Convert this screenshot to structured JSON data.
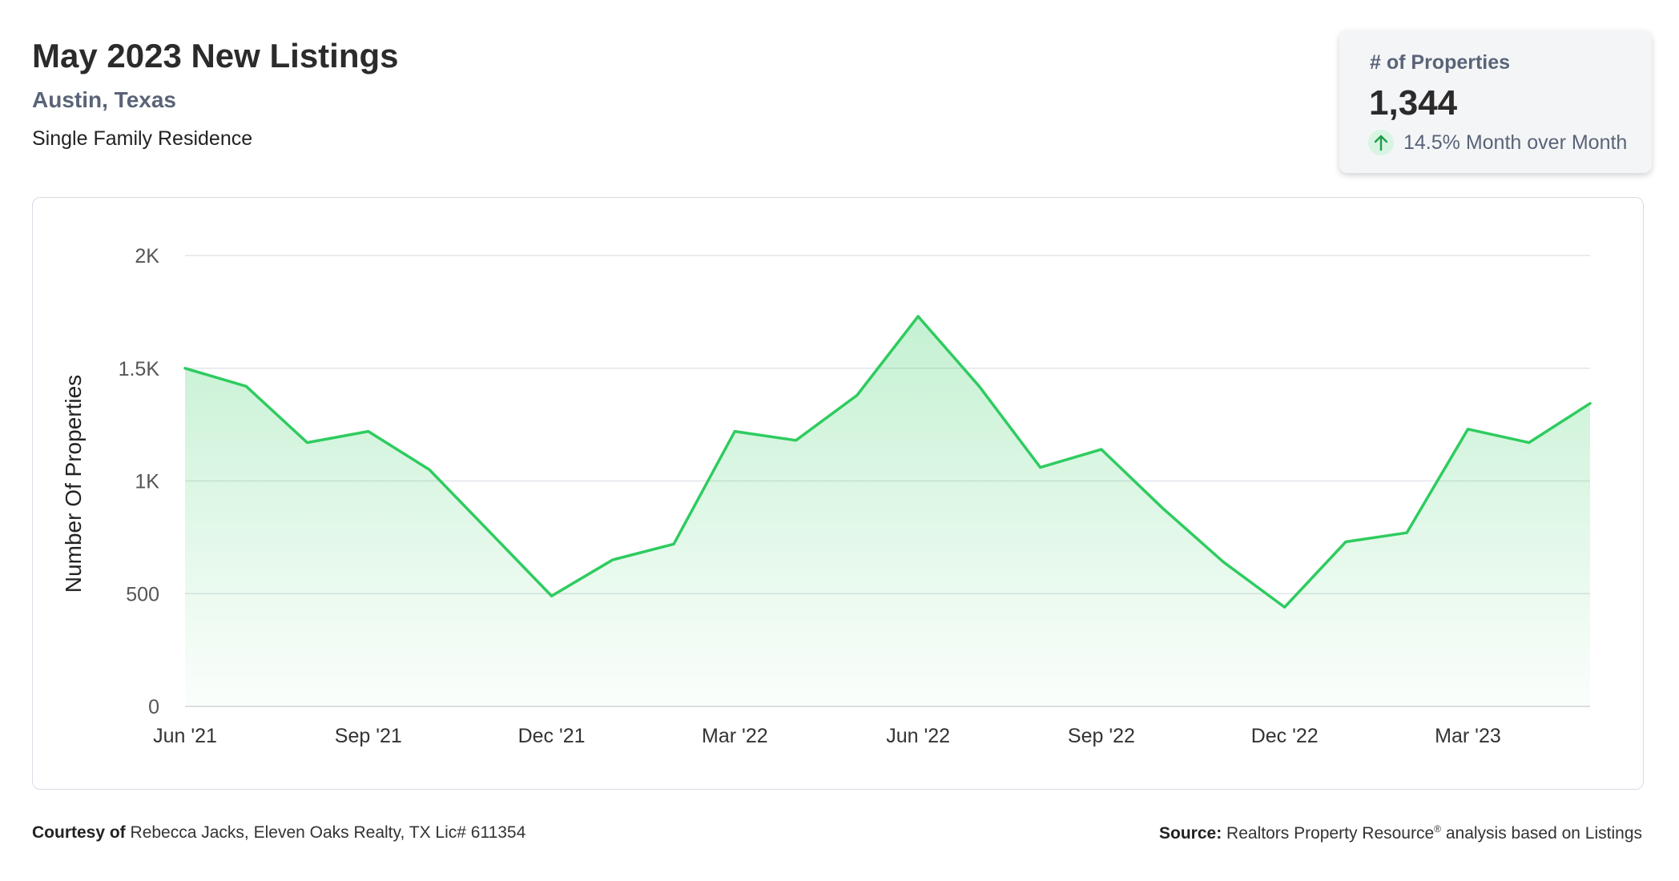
{
  "header": {
    "title": "May 2023 New Listings",
    "location": "Austin, Texas",
    "property_type": "Single Family Residence"
  },
  "stat_card": {
    "label": "# of Properties",
    "value": "1,344",
    "change": "14.5% Month over Month",
    "change_direction": "up",
    "change_color": "#2bb55a"
  },
  "chart_data": {
    "type": "area",
    "title": "",
    "xlabel": "",
    "ylabel": "Number Of Properties",
    "x": [
      "Jun '21",
      "Jul '21",
      "Aug '21",
      "Sep '21",
      "Oct '21",
      "Nov '21",
      "Dec '21",
      "Jan '22",
      "Feb '22",
      "Mar '22",
      "Apr '22",
      "May '22",
      "Jun '22",
      "Jul '22",
      "Aug '22",
      "Sep '22",
      "Oct '22",
      "Nov '22",
      "Dec '22",
      "Jan '23",
      "Feb '23",
      "Mar '23",
      "Apr '23",
      "May '23"
    ],
    "x_ticks": [
      "Jun '21",
      "Sep '21",
      "Dec '21",
      "Mar '22",
      "Jun '22",
      "Sep '22",
      "Dec '22",
      "Mar '23"
    ],
    "y_ticks": [
      0,
      500,
      1000,
      1500,
      2000
    ],
    "y_tick_labels": [
      "0",
      "500",
      "1K",
      "1.5K",
      "2K"
    ],
    "ylim": [
      0,
      2000
    ],
    "grid": true,
    "line_color": "#2ecc5f",
    "series": [
      {
        "values": [
          1500,
          1420,
          1170,
          1220,
          1050,
          770,
          490,
          650,
          720,
          1220,
          1180,
          1380,
          1730,
          1420,
          1060,
          1140,
          880,
          640,
          440,
          730,
          770,
          1230,
          1170,
          1344
        ]
      }
    ]
  },
  "footer": {
    "courtesy_label": "Courtesy of",
    "courtesy_text": "Rebecca Jacks, Eleven Oaks Realty, TX Lic# 611354",
    "source_label": "Source:",
    "source_text_pre": "Realtors Property Resource",
    "source_sup": "®",
    "source_text_post": "analysis based on Listings"
  }
}
